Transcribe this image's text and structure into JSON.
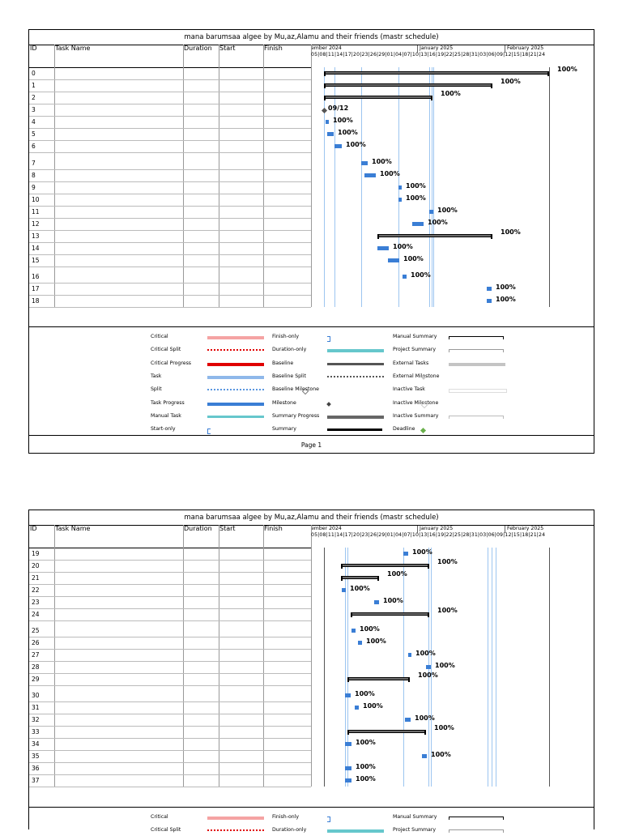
{
  "title": "mana barumsaa algee by Mu,az,Alamu and their friends (mastr schedule)",
  "columns": {
    "id": "ID",
    "task_name": "Task Name",
    "duration": "Duration",
    "start": "Start",
    "finish": "Finish"
  },
  "timeline": {
    "months": [
      "ember 2024",
      "January 2025",
      "February 2025"
    ],
    "days": [
      "05",
      "08",
      "11",
      "14",
      "17",
      "20",
      "23",
      "26",
      "29",
      "01",
      "04",
      "07",
      "10",
      "13",
      "16",
      "19",
      "22",
      "25",
      "28",
      "31",
      "03",
      "06",
      "09",
      "12",
      "15",
      "18",
      "21",
      "24"
    ]
  },
  "pages": [
    {
      "rows": [
        {
          "id": "0",
          "label": "100%"
        },
        {
          "id": "1",
          "label": "100%"
        },
        {
          "id": "2",
          "label": "100%"
        },
        {
          "id": "3",
          "label": "09/12"
        },
        {
          "id": "4",
          "label": "100%"
        },
        {
          "id": "5",
          "label": "100%"
        },
        {
          "id": "6",
          "label": "100%"
        },
        {
          "id": "7",
          "label": "100%"
        },
        {
          "id": "8",
          "label": "100%"
        },
        {
          "id": "9",
          "label": "100%"
        },
        {
          "id": "10",
          "label": "100%"
        },
        {
          "id": "11",
          "label": "100%"
        },
        {
          "id": "12",
          "label": "100%"
        },
        {
          "id": "13",
          "label": "100%"
        },
        {
          "id": "14",
          "label": "100%"
        },
        {
          "id": "15",
          "label": "100%"
        },
        {
          "id": "16",
          "label": "100%"
        },
        {
          "id": "17",
          "label": "100%"
        },
        {
          "id": "18",
          "label": "100%"
        }
      ],
      "footer": "Page 1"
    },
    {
      "rows": [
        {
          "id": "19",
          "label": "100%"
        },
        {
          "id": "20",
          "label": "100%"
        },
        {
          "id": "21",
          "label": "100%"
        },
        {
          "id": "22",
          "label": "100%"
        },
        {
          "id": "23",
          "label": "100%"
        },
        {
          "id": "24",
          "label": "100%"
        },
        {
          "id": "25",
          "label": "100%"
        },
        {
          "id": "26",
          "label": "100%"
        },
        {
          "id": "27",
          "label": "100%"
        },
        {
          "id": "28",
          "label": "100%"
        },
        {
          "id": "29",
          "label": "100%"
        },
        {
          "id": "30",
          "label": "100%"
        },
        {
          "id": "31",
          "label": "100%"
        },
        {
          "id": "32",
          "label": "100%"
        },
        {
          "id": "33",
          "label": "100%"
        },
        {
          "id": "34",
          "label": "100%"
        },
        {
          "id": "35",
          "label": "100%"
        },
        {
          "id": "36",
          "label": "100%"
        },
        {
          "id": "37",
          "label": "100%"
        }
      ]
    }
  ],
  "legend": {
    "col1": [
      "Critical",
      "Critical Split",
      "Critical Progress",
      "Task",
      "Split",
      "Task Progress",
      "Manual Task",
      "Start-only"
    ],
    "col2": [
      "Finish-only",
      "Duration-only",
      "Baseline",
      "Baseline Split",
      "Baseline Milestone",
      "Milestone",
      "Summary Progress",
      "Summary"
    ],
    "col3": [
      "Manual Summary",
      "Project Summary",
      "External Tasks",
      "External Milestone",
      "Inactive Task",
      "Inactive Milestone",
      "Inactive Summary",
      "Deadline"
    ]
  },
  "colors": {
    "task": "#3a7ed5",
    "summary": "#6d6d6d",
    "critical": "#f5a3a3",
    "critical_progress": "#e00000",
    "duration_only": "#66c7cc",
    "deadline": "#6ab04c"
  }
}
